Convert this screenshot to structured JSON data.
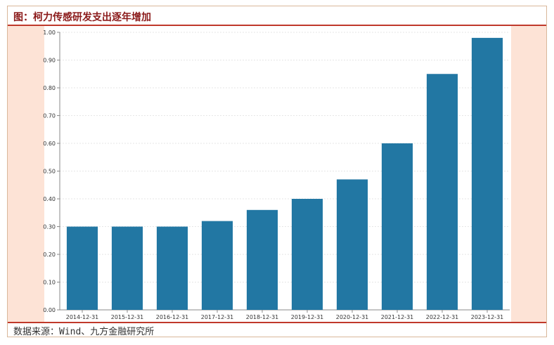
{
  "title": "图：柯力传感研发支出逐年增加",
  "source": "数据来源：Wind、九方金融研究所",
  "colors": {
    "bar": "#2277a3",
    "side_panel": "#fde3d6",
    "title_text": "#8b1a1a",
    "rule": "#c0392b",
    "grid": "#e6e6e6",
    "axis": "#888888"
  },
  "chart_data": {
    "type": "bar",
    "categories": [
      "2014-12-31",
      "2015-12-31",
      "2016-12-31",
      "2017-12-31",
      "2018-12-31",
      "2019-12-31",
      "2020-12-31",
      "2021-12-31",
      "2022-12-31",
      "2023-12-31"
    ],
    "values": [
      0.3,
      0.3,
      0.3,
      0.32,
      0.36,
      0.4,
      0.47,
      0.6,
      0.85,
      0.98
    ],
    "yticks": [
      "0.00",
      "0.10",
      "0.20",
      "0.30",
      "0.40",
      "0.50",
      "0.60",
      "0.70",
      "0.80",
      "0.90",
      "1.00"
    ],
    "ylim": [
      0,
      1.0
    ],
    "grid": true,
    "legend": "none"
  }
}
